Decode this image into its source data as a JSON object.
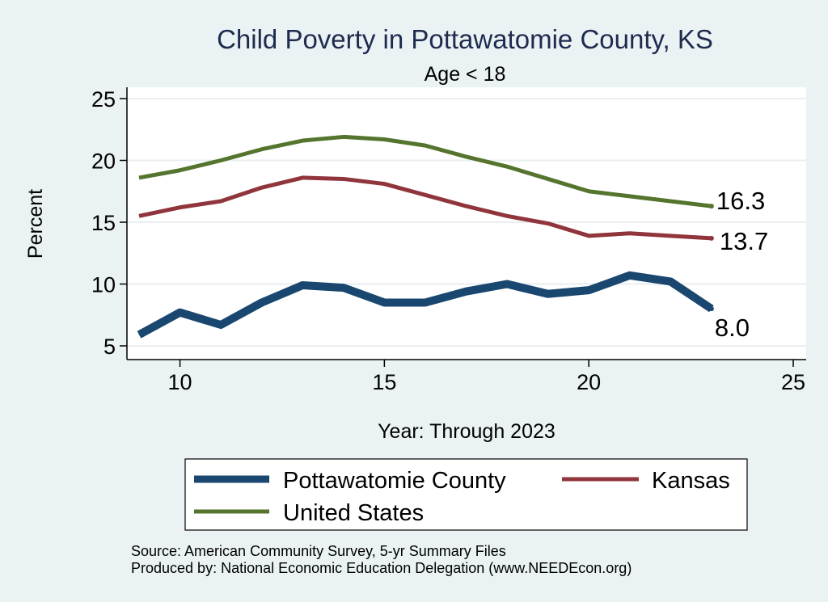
{
  "chart_data": {
    "type": "line",
    "title": "Child Poverty in Pottawatomie County, KS",
    "subtitle": "Age < 18",
    "xlabel": "Year: Through 2023",
    "ylabel": "Percent",
    "xlim": [
      9,
      25
    ],
    "ylim": [
      4.5,
      26
    ],
    "x_ticks": [
      10,
      15,
      20,
      25
    ],
    "y_ticks": [
      5,
      10,
      15,
      20,
      25
    ],
    "grid": true,
    "legend_position": "bottom",
    "x": [
      9,
      10,
      11,
      12,
      13,
      14,
      15,
      16,
      17,
      18,
      19,
      20,
      21,
      22,
      23
    ],
    "series": [
      {
        "name": "Pottawatomie County",
        "color": "#1a476f",
        "values": [
          5.9,
          7.7,
          6.7,
          8.5,
          9.9,
          9.7,
          8.5,
          8.5,
          9.4,
          10.0,
          9.2,
          9.5,
          10.7,
          10.2,
          8.0
        ],
        "end_label": "8.0"
      },
      {
        "name": "Kansas",
        "color": "#90353b",
        "values": [
          15.5,
          16.2,
          16.7,
          17.8,
          18.6,
          18.5,
          18.1,
          17.2,
          16.3,
          15.5,
          14.9,
          13.9,
          14.1,
          13.9,
          13.7
        ],
        "end_label": "13.7"
      },
      {
        "name": "United States",
        "color": "#55752f",
        "values": [
          18.6,
          19.2,
          20.0,
          20.9,
          21.6,
          21.9,
          21.7,
          21.2,
          20.3,
          19.5,
          18.5,
          17.5,
          17.1,
          16.7,
          16.3
        ],
        "end_label": "16.3"
      }
    ]
  },
  "source": {
    "line1": "Source: American Community Survey, 5-yr Summary Files",
    "line2": "Produced by: National Economic Education Delegation (www.NEEDEcon.org)"
  }
}
